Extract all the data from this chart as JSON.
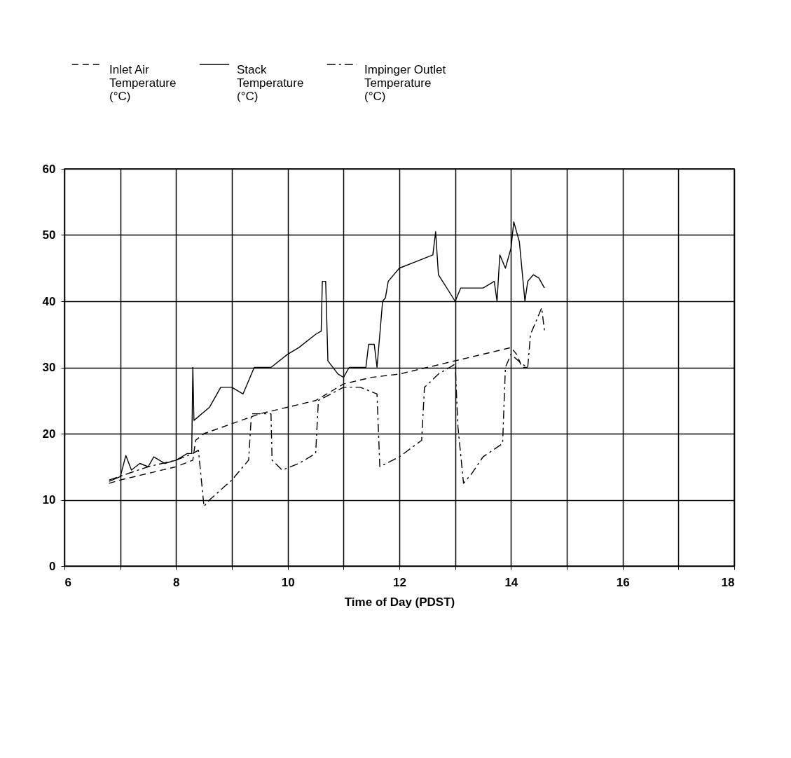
{
  "chart_data": {
    "type": "line",
    "xlabel": "Time of Day (PDST)",
    "xlim": [
      6,
      18
    ],
    "xticks": [
      6,
      {
        "value": 7,
        "label": null
      },
      8,
      {
        "value": 9,
        "label": null
      },
      10,
      {
        "value": 11,
        "label": null
      },
      12,
      {
        "value": 13,
        "label": null
      },
      14,
      {
        "value": 15,
        "label": null
      },
      16,
      {
        "value": 17,
        "label": null
      },
      18
    ],
    "ylim": [
      0,
      60
    ],
    "yticks": [
      0,
      10,
      20,
      30,
      40,
      50,
      60
    ],
    "grid": true,
    "legend": "top",
    "marker": "none",
    "series": [
      {
        "name": "Inlet Air\nTemperature\n(°C)",
        "color": "#000000",
        "line_style": "dashed",
        "x": [
          6.8,
          7.0,
          7.5,
          8.0,
          8.3,
          8.35,
          8.5,
          9.0,
          9.5,
          10.0,
          10.5,
          11.0,
          11.5,
          12.0,
          12.5,
          13.0,
          13.5,
          14.0,
          14.1,
          14.2,
          14.3
        ],
        "values": [
          12.5,
          13,
          14,
          15,
          16,
          19,
          20,
          21.5,
          23,
          24,
          25,
          27.5,
          28.5,
          29,
          30,
          31,
          32,
          33,
          32,
          30,
          30
        ]
      },
      {
        "name": "Stack\nTemperature\n(°C)",
        "color": "#000000",
        "line_style": "solid",
        "x": [
          6.8,
          7.0,
          7.1,
          7.2,
          7.35,
          7.5,
          7.6,
          7.8,
          8.0,
          8.2,
          8.28,
          8.3,
          8.32,
          8.6,
          8.8,
          9.0,
          9.2,
          9.4,
          9.7,
          10.0,
          10.2,
          10.5,
          10.6,
          10.62,
          10.68,
          10.72,
          10.9,
          11.0,
          11.1,
          11.4,
          11.45,
          11.55,
          11.6,
          11.7,
          11.75,
          11.8,
          12.0,
          12.3,
          12.6,
          12.65,
          12.7,
          13.0,
          13.1,
          13.5,
          13.7,
          13.75,
          13.8,
          13.9,
          14.0,
          14.05,
          14.15,
          14.25,
          14.3,
          14.4,
          14.5,
          14.6
        ],
        "values": [
          12.8,
          13.5,
          16.7,
          14.5,
          15.5,
          15,
          16.5,
          15.5,
          16,
          17,
          17,
          30,
          22,
          24,
          27,
          27,
          26,
          30,
          30,
          32,
          33,
          35,
          35.5,
          43,
          43,
          31,
          29,
          28.5,
          30,
          30,
          33.5,
          33.5,
          30,
          40,
          40.5,
          43,
          45,
          46,
          47,
          50.5,
          44,
          40,
          42,
          42,
          43,
          40,
          47,
          45,
          48,
          52,
          49,
          40,
          43,
          44,
          43.5,
          42
        ]
      },
      {
        "name": "Impinger Outlet\nTemperature\n(°C)",
        "color": "#000000",
        "line_style": "dashdot",
        "x": [
          6.8,
          7.5,
          8.0,
          8.3,
          8.4,
          8.5,
          8.6,
          9.0,
          9.3,
          9.35,
          9.5,
          9.7,
          9.72,
          9.9,
          10.2,
          10.5,
          10.55,
          11.0,
          11.3,
          11.6,
          11.65,
          12.0,
          12.4,
          12.45,
          12.7,
          13.0,
          13.05,
          13.15,
          13.3,
          13.5,
          13.85,
          13.9,
          14.0,
          14.2,
          14.3,
          14.35,
          14.5,
          14.55,
          14.6
        ],
        "values": [
          13,
          15,
          16,
          17,
          17.5,
          9,
          10,
          13,
          16,
          23,
          23,
          23,
          16,
          14.5,
          15.5,
          17,
          25,
          27,
          27,
          26,
          15,
          16.5,
          19,
          27,
          29,
          30.5,
          21,
          12.5,
          14,
          16.5,
          18.5,
          30,
          32,
          30.5,
          30,
          35,
          38,
          39,
          35.5
        ]
      }
    ]
  }
}
